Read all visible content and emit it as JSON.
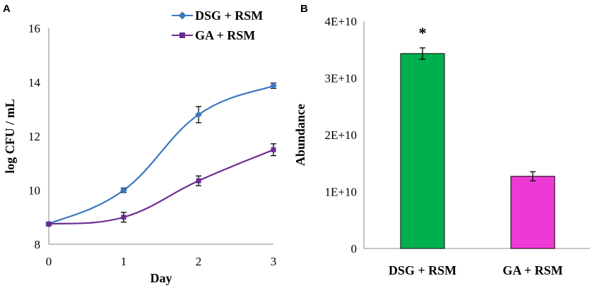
{
  "chart_data": [
    {
      "panel": "A",
      "type": "line",
      "title": "",
      "xlabel": "Day",
      "ylabel": "log CFU / mL",
      "x": [
        0,
        1,
        2,
        3
      ],
      "xticks": [
        "0",
        "1",
        "2",
        "3"
      ],
      "yticks": [
        "8",
        "10",
        "12",
        "14",
        "16"
      ],
      "xlim": [
        0,
        3
      ],
      "ylim": [
        8,
        16
      ],
      "grid": false,
      "legend_position": "top-right",
      "series": [
        {
          "name": "DSG + RSM",
          "values": [
            8.75,
            10.0,
            12.8,
            13.87
          ],
          "errors": [
            0.07,
            0.08,
            0.3,
            0.1
          ],
          "color": "#3b78c0",
          "marker": "diamond"
        },
        {
          "name": "GA + RSM",
          "values": [
            8.75,
            9.0,
            10.35,
            11.5
          ],
          "errors": [
            0.07,
            0.18,
            0.18,
            0.22
          ],
          "color": "#6a2c91",
          "marker": "square"
        }
      ]
    },
    {
      "panel": "B",
      "type": "bar",
      "title": "",
      "xlabel": "",
      "ylabel": "Abundance",
      "categories": [
        "DSG + RSM",
        "GA + RSM"
      ],
      "values": [
        34300000000,
        12700000000
      ],
      "errors": [
        1000000000,
        800000000
      ],
      "colors": [
        "#00b04f",
        "#ee3ad5"
      ],
      "yticks": [
        "0",
        "1E+10",
        "2E+10",
        "3E+10",
        "4E+10"
      ],
      "ylim": [
        0,
        40000000000
      ],
      "annotations": [
        "*",
        ""
      ],
      "grid": false
    }
  ]
}
